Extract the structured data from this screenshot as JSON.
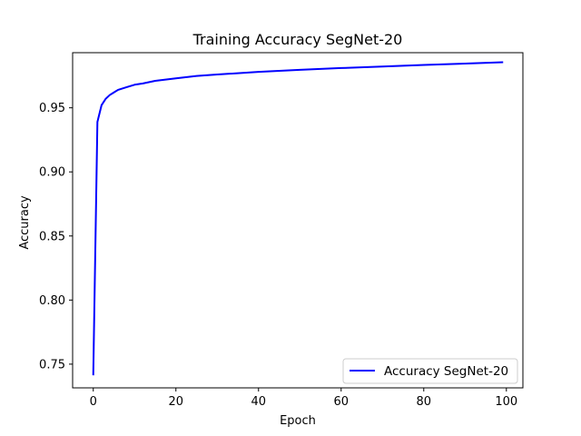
{
  "chart_data": {
    "type": "line",
    "title": "Training Accuracy SegNet-20",
    "xlabel": "Epoch",
    "ylabel": "Accuracy",
    "xlim": [
      -5,
      104
    ],
    "ylim": [
      0.7315,
      0.993
    ],
    "xticks": [
      0,
      20,
      40,
      60,
      80,
      100
    ],
    "yticks": [
      0.75,
      0.8,
      0.85,
      0.9,
      0.95
    ],
    "ytick_labels": [
      "0.75",
      "0.80",
      "0.85",
      "0.90",
      "0.95"
    ],
    "grid": false,
    "legend_position": "lower-right",
    "series": [
      {
        "name": "Accuracy SegNet-20",
        "color": "#0000ff",
        "x": [
          0,
          1,
          2,
          3,
          4,
          5,
          6,
          8,
          10,
          12,
          15,
          20,
          25,
          30,
          40,
          50,
          60,
          70,
          80,
          90,
          99
        ],
        "y": [
          0.742,
          0.939,
          0.952,
          0.957,
          0.96,
          0.962,
          0.964,
          0.966,
          0.968,
          0.969,
          0.971,
          0.973,
          0.9748,
          0.976,
          0.978,
          0.9796,
          0.981,
          0.9822,
          0.9834,
          0.9845,
          0.9855
        ]
      }
    ]
  }
}
